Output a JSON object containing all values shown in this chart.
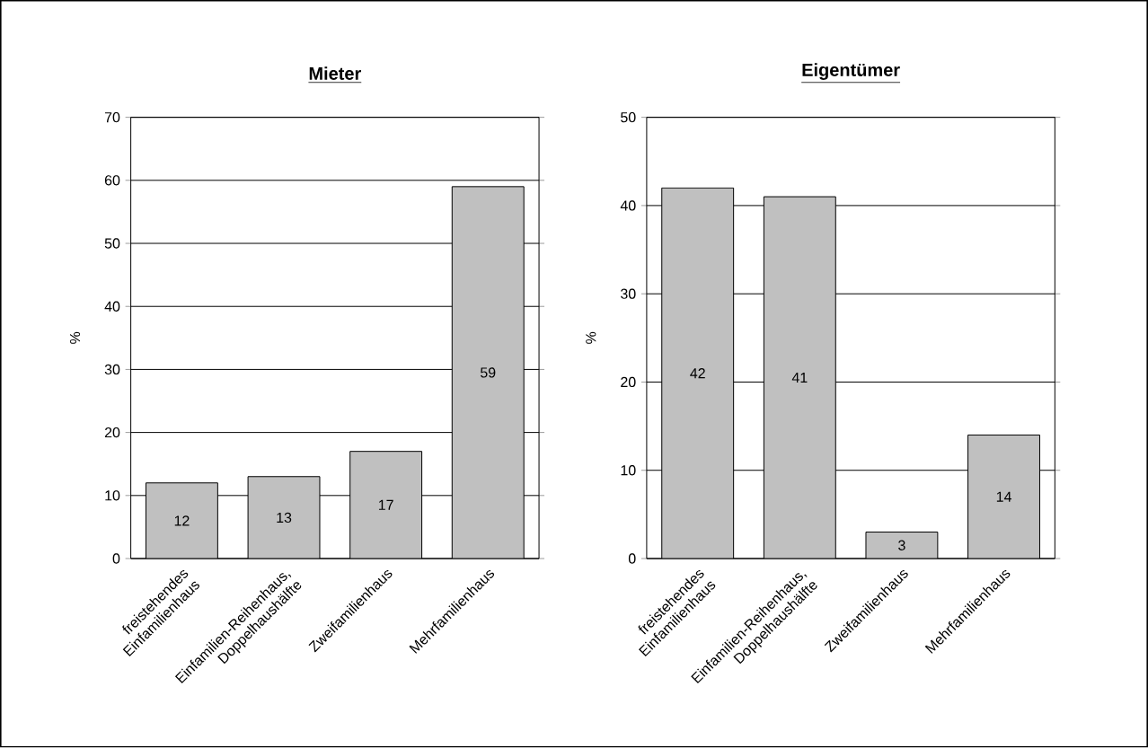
{
  "chart_data": [
    {
      "type": "bar",
      "title": "Mieter",
      "ylabel": "%",
      "categories": [
        "freistehendes Einfamilienhaus",
        "Einfamilien-Reihenhaus, Doppelhaushälfte",
        "Zweifamilienhaus",
        "Mehrfamilienhaus"
      ],
      "values": [
        12,
        13,
        17,
        59
      ],
      "color": "#c0c0c0",
      "ylim": [
        0,
        70
      ],
      "yticks": [
        0,
        10,
        20,
        30,
        40,
        50,
        60,
        70
      ],
      "grid": "y",
      "data_labels": true
    },
    {
      "type": "bar",
      "title": "Eigentümer",
      "ylabel": "%",
      "categories": [
        "freistehendes Einfamilienhaus",
        "Einfamilien-Reihenhaus, Doppelhaushälfte",
        "Zweifamilienhaus",
        "Mehrfamilienhaus"
      ],
      "values": [
        42,
        41,
        3,
        14
      ],
      "color": "#c0c0c0",
      "ylim": [
        0,
        50
      ],
      "yticks": [
        0,
        10,
        20,
        30,
        40,
        50
      ],
      "grid": "y",
      "data_labels": true
    }
  ]
}
